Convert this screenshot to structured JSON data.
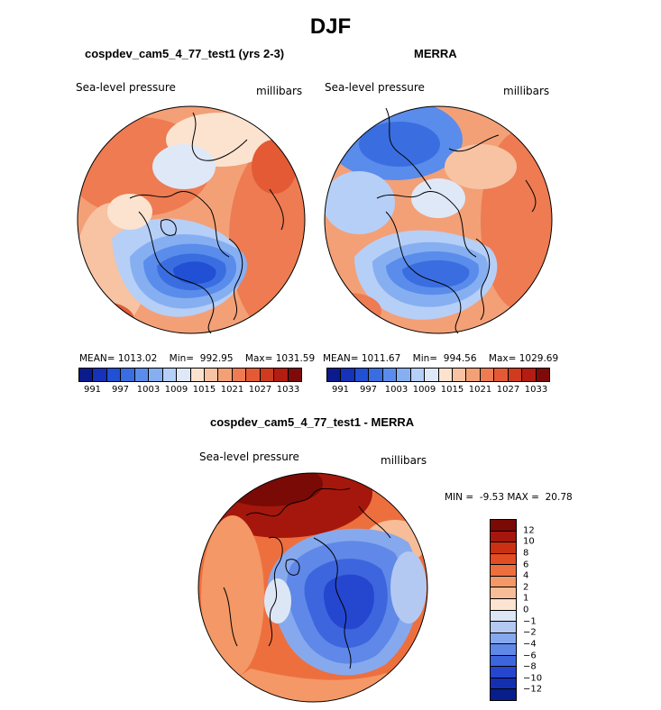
{
  "page": {
    "title": "DJF"
  },
  "panels": {
    "model": {
      "title": "cospdev_cam5_4_77_test1 (yrs 2-3)",
      "variable": "Sea-level pressure",
      "units": "millibars",
      "stats": {
        "mean_label": "MEAN=",
        "mean": "1013.02",
        "min_label": "Min=",
        "min": "992.95",
        "max_label": "Max=",
        "max": "1031.59"
      }
    },
    "obs": {
      "title": "MERRA",
      "variable": "Sea-level pressure",
      "units": "millibars",
      "stats": {
        "mean_label": "MEAN=",
        "mean": "1011.67",
        "min_label": "Min=",
        "min": "994.56",
        "max_label": "Max=",
        "max": "1029.69"
      }
    },
    "diff": {
      "title": "cospdev_cam5_4_77_test1 - MERRA",
      "variable": "Sea-level pressure",
      "units": "millibars",
      "stats": {
        "min_label": "MIN =",
        "min": "-9.53",
        "max_label": "MAX =",
        "max": "20.78"
      }
    }
  },
  "colorbar_abs": {
    "colors": [
      "#0b1a8c",
      "#1532b8",
      "#2150d4",
      "#3a6ee0",
      "#5a8ceb",
      "#86aff2",
      "#b6cff7",
      "#dfe8f7",
      "#fbe3d0",
      "#f7c3a3",
      "#f3a077",
      "#ee7b52",
      "#e35a34",
      "#cf3b1f",
      "#b31d12",
      "#7f0a0a"
    ],
    "tick_labels": [
      "991",
      "997",
      "1003",
      "1009",
      "1015",
      "1021",
      "1027",
      "1033"
    ]
  },
  "colorbar_diff": {
    "colors": [
      "#7a0a06",
      "#a5170c",
      "#c93112",
      "#e34d22",
      "#ee6f3e",
      "#f39866",
      "#f7bd98",
      "#fce3d2",
      "#dde6f5",
      "#b3c9f1",
      "#86a9ee",
      "#5f88e8",
      "#3d65de",
      "#2546cf",
      "#1330b2",
      "#081e8a"
    ],
    "tick_labels": [
      "12",
      "10",
      "8",
      "6",
      "4",
      "2",
      "1",
      "0",
      "−1",
      "−2",
      "−4",
      "−6",
      "−8",
      "−10",
      "−12"
    ]
  },
  "colors": {
    "land_outline": "#000000",
    "ocean_high": "#ee7b52",
    "low_center": "#2150d4"
  }
}
